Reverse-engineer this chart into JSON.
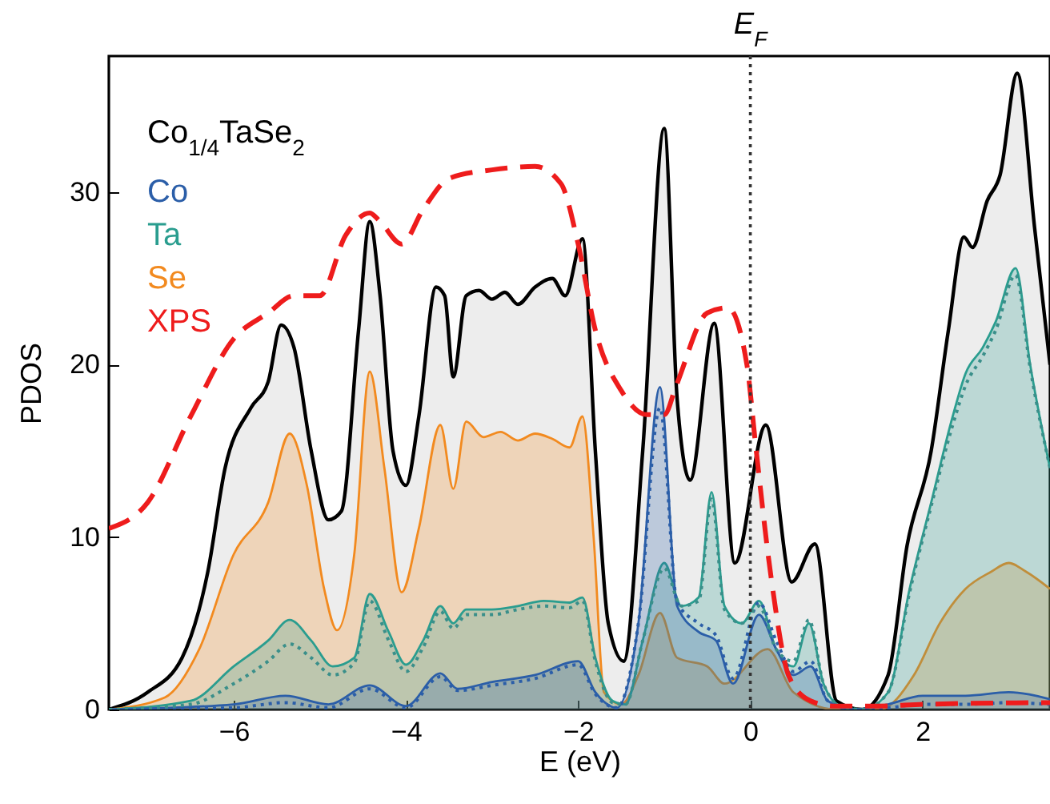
{
  "chart_data": {
    "type": "area",
    "xlabel": "E (eV)",
    "ylabel": "PDOS",
    "legend_title": "Co$_{1/4}$TaSe$_{2}$",
    "legend": "top left",
    "xlim": [
      -7.45,
      3.48
    ],
    "ylim": [
      0,
      37.9
    ],
    "xticks": [
      -6,
      -4,
      -2,
      0,
      2
    ],
    "yticks": [
      0,
      10,
      20,
      30
    ],
    "ref_lines": [
      {
        "axis": "x",
        "value": 0,
        "label": "E$_{F}$",
        "color": "#333333",
        "line_style": "dotted"
      }
    ],
    "series": [
      {
        "name": "Co",
        "color": "#2b5ea8",
        "x": [
          -7.45,
          -6.0,
          -5.4,
          -4.9,
          -4.42,
          -4.0,
          -3.6,
          -3.4,
          -3.0,
          -2.5,
          -2.0,
          -1.8,
          -1.55,
          -1.3,
          -1.05,
          -0.85,
          -0.6,
          -0.4,
          -0.2,
          0.1,
          0.3,
          0.5,
          0.7,
          0.9,
          1.2,
          1.6,
          2.0,
          2.5,
          3.0,
          3.48
        ],
        "values": [
          0,
          0.3,
          0.8,
          0.3,
          1.4,
          0.2,
          2.1,
          1.2,
          1.6,
          2,
          2.8,
          1,
          0.1,
          5,
          18.7,
          6,
          4.5,
          4,
          1.5,
          5.5,
          3.5,
          2,
          2.5,
          0.5,
          0,
          0.3,
          0.8,
          0.8,
          1,
          0.6
        ]
      },
      {
        "type": "line",
        "line_style": "dotted",
        "color": "#2b5ea8",
        "x": [
          -7.45,
          -6.0,
          -5.4,
          -4.9,
          -4.42,
          -4.0,
          -3.6,
          -3.4,
          -3.0,
          -2.5,
          -2.0,
          -1.8,
          -1.55,
          -1.3,
          -1.05,
          -0.85,
          -0.6,
          -0.4,
          -0.2,
          0.1,
          0.3,
          0.5,
          0.7,
          0.9,
          1.2,
          1.6,
          2.0,
          2.5,
          3.0,
          3.48
        ],
        "values": [
          0,
          0.1,
          0.4,
          0.1,
          1.2,
          0.1,
          1.9,
          1.1,
          1.4,
          1.8,
          2.6,
          0.9,
          0.1,
          5,
          17.5,
          6.2,
          5,
          4.3,
          1.8,
          6.2,
          4,
          2.2,
          2.8,
          0.5,
          0,
          0.1,
          0.3,
          0.3,
          0.4,
          0.3
        ]
      },
      {
        "name": "Ta",
        "color": "#2a9d8f",
        "x": [
          -7.45,
          -6.5,
          -6.0,
          -5.6,
          -5.35,
          -5.1,
          -4.85,
          -4.6,
          -4.42,
          -4.2,
          -4.0,
          -3.8,
          -3.6,
          -3.45,
          -3.3,
          -3.0,
          -2.7,
          -2.4,
          -2.1,
          -1.95,
          -1.8,
          -1.6,
          -1.45,
          -1.25,
          -1.0,
          -0.8,
          -0.6,
          -0.45,
          -0.3,
          -0.1,
          0.1,
          0.3,
          0.5,
          0.68,
          0.85,
          1.05,
          1.3,
          1.6,
          1.85,
          2.1,
          2.35,
          2.5,
          2.7,
          2.85,
          3.08,
          3.25,
          3.48
        ],
        "values": [
          0,
          0.5,
          2.5,
          4,
          5.2,
          4,
          2.5,
          3,
          6.7,
          4.5,
          2.6,
          4,
          6,
          5,
          5.8,
          5.8,
          6,
          6.3,
          6.2,
          6.5,
          3,
          0.5,
          0.3,
          4,
          8.5,
          6,
          6.5,
          12.6,
          6,
          5,
          6.3,
          3.5,
          2.5,
          5,
          1.5,
          0.2,
          0,
          1,
          7,
          12,
          17,
          19.5,
          21,
          22.5,
          25.6,
          20,
          14
        ]
      },
      {
        "type": "line",
        "line_style": "dotted",
        "color": "#3a8f8a",
        "x": [
          -7.45,
          -6.5,
          -6.0,
          -5.6,
          -5.35,
          -5.1,
          -4.85,
          -4.6,
          -4.42,
          -4.2,
          -4.0,
          -3.8,
          -3.6,
          -3.45,
          -3.3,
          -3.0,
          -2.7,
          -2.4,
          -2.1,
          -1.95,
          -1.8,
          -1.6,
          -1.45,
          -1.25,
          -1.0,
          -0.8,
          -0.6,
          -0.45,
          -0.3,
          -0.1,
          0.1,
          0.3,
          0.5,
          0.68,
          0.85,
          1.05,
          1.3,
          1.6,
          1.85,
          2.1,
          2.35,
          2.5,
          2.7,
          2.85,
          3.08,
          3.25,
          3.48
        ],
        "values": [
          0,
          0.3,
          1.5,
          2.8,
          3.8,
          3,
          2,
          2.7,
          6.3,
          4,
          2.2,
          3.6,
          5.7,
          4.7,
          5.5,
          5.5,
          5.8,
          6,
          5.9,
          6.3,
          2.8,
          0.4,
          0.3,
          4,
          8.2,
          6,
          6.3,
          12.2,
          5.8,
          5,
          6,
          3.5,
          2.8,
          5.2,
          1.5,
          0.2,
          0,
          1,
          6.8,
          11.8,
          16.5,
          18.8,
          20.5,
          22,
          25.2,
          19.8,
          14
        ]
      },
      {
        "name": "Se",
        "color": "#f28a1f",
        "x": [
          -7.45,
          -6.8,
          -6.4,
          -6.0,
          -5.6,
          -5.35,
          -5.15,
          -4.95,
          -4.8,
          -4.6,
          -4.42,
          -4.25,
          -4.05,
          -3.85,
          -3.6,
          -3.45,
          -3.3,
          -3.1,
          -2.9,
          -2.7,
          -2.5,
          -2.3,
          -2.1,
          -1.95,
          -1.82,
          -1.7,
          -1.5,
          -1.3,
          -1.05,
          -0.85,
          -0.5,
          -0.3,
          0.2,
          0.5,
          1.0,
          1.5,
          1.9,
          2.2,
          2.5,
          2.8,
          3.0,
          3.2,
          3.48
        ],
        "values": [
          0,
          0.7,
          3.5,
          9,
          12,
          16,
          13,
          7,
          4.6,
          9,
          19.6,
          14,
          6.8,
          10.5,
          16.5,
          12.8,
          16.7,
          15.8,
          16.1,
          15.6,
          16,
          15.7,
          15.2,
          17,
          10,
          1,
          0.3,
          2,
          5.6,
          3,
          2.5,
          1.5,
          3.5,
          1,
          0,
          0,
          2,
          5,
          7,
          8,
          8.5,
          8,
          7
        ]
      },
      {
        "type": "line",
        "line_style": "dashed",
        "name": "XPS",
        "color": "#ee1c1c",
        "x": [
          -7.45,
          -7.0,
          -6.5,
          -6.0,
          -5.6,
          -5.3,
          -5.0,
          -4.7,
          -4.42,
          -4.3,
          -4.05,
          -3.8,
          -3.5,
          -3.0,
          -2.5,
          -2.2,
          -2.0,
          -1.8,
          -1.5,
          -1.2,
          -1.0,
          -0.86,
          -0.5,
          -0.26,
          -0.04,
          0.06,
          0.24,
          0.45,
          0.7,
          0.98,
          1.5,
          2.0,
          3.48
        ],
        "values": [
          10.5,
          12,
          17,
          21.5,
          23,
          24,
          24,
          27.5,
          28.8,
          28.3,
          27,
          29,
          30.8,
          31.3,
          31.5,
          30.5,
          27,
          22,
          18.5,
          17.1,
          17.1,
          18.8,
          23,
          23.3,
          20,
          15.4,
          7.7,
          1.9,
          0.5,
          0.2,
          0.2,
          0.3,
          0.4
        ]
      },
      {
        "color": "#000000",
        "x": [
          -7.45,
          -7.0,
          -6.6,
          -6.3,
          -6.1,
          -5.8,
          -5.6,
          -5.45,
          -5.3,
          -5.1,
          -4.9,
          -4.75,
          -4.55,
          -4.42,
          -4.3,
          -4.15,
          -4.0,
          -3.85,
          -3.65,
          -3.55,
          -3.45,
          -3.3,
          -3.15,
          -3.0,
          -2.85,
          -2.7,
          -2.5,
          -2.3,
          -2.15,
          -1.95,
          -1.8,
          -1.65,
          -1.47,
          -1.25,
          -1.0,
          -0.85,
          -0.7,
          -0.42,
          -0.18,
          0.18,
          0.48,
          0.75,
          1.0,
          1.3,
          1.6,
          1.82,
          2.1,
          2.3,
          2.48,
          2.58,
          2.75,
          2.9,
          3.1,
          3.3,
          3.48
        ],
        "values": [
          0,
          1,
          3,
          8,
          14,
          17.5,
          19,
          22.3,
          21,
          15,
          11,
          11.5,
          22,
          28.3,
          24,
          15,
          13,
          17,
          24.5,
          24,
          19.3,
          24,
          24.3,
          23.8,
          24.2,
          23.5,
          24.5,
          25,
          24,
          27.3,
          15,
          5,
          2.8,
          15,
          33.7,
          18,
          13.3,
          22.4,
          8.5,
          16.5,
          7.4,
          9.6,
          0.5,
          0,
          2,
          9.5,
          15,
          22,
          27.4,
          26.8,
          29.5,
          31,
          36.9,
          28,
          20
        ]
      }
    ]
  }
}
